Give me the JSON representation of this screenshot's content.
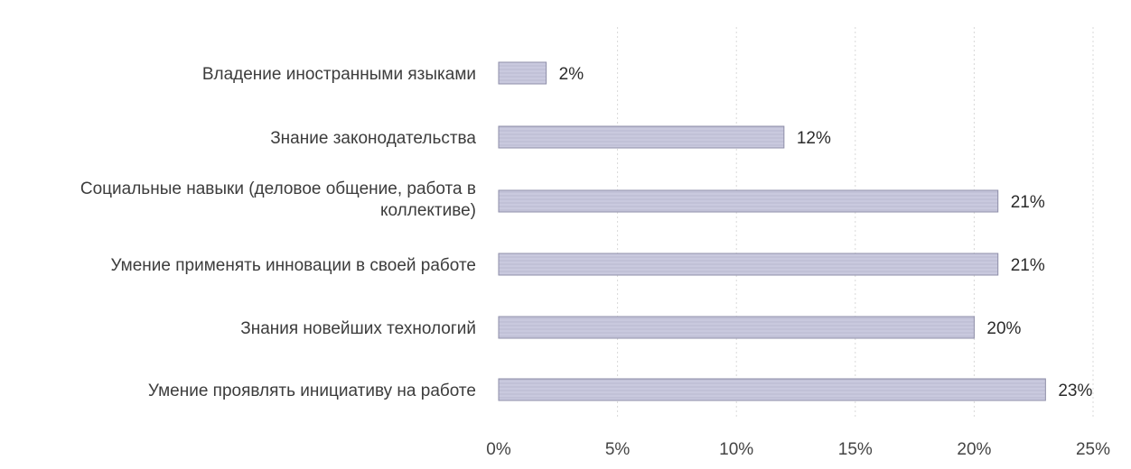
{
  "chart_data": {
    "type": "bar",
    "orientation": "horizontal",
    "categories": [
      "Владение иностранными языками",
      "Знание законодательства",
      "Социальные навыки (деловое общение, работа в коллективе)",
      "Умение применять инновации в своей работе",
      "Знания новейших технологий",
      "Умение проявлять инициативу на работе"
    ],
    "category_lines": [
      [
        "Владение иностранными языками"
      ],
      [
        "Знание законодательства"
      ],
      [
        "Социальные навыки (деловое общение, работа в",
        "коллективе)"
      ],
      [
        "Умение применять инновации в своей работе"
      ],
      [
        "Знания новейших технологий"
      ],
      [
        "Умение проявлять инициативу на работе"
      ]
    ],
    "values": [
      2,
      12,
      21,
      21,
      20,
      23
    ],
    "value_labels": [
      "2%",
      "12%",
      "21%",
      "21%",
      "20%",
      "23%"
    ],
    "x_ticks": [
      0,
      5,
      10,
      15,
      20,
      25
    ],
    "x_tick_labels": [
      "0%",
      "5%",
      "10%",
      "15%",
      "20%",
      "25%"
    ],
    "xlim": [
      0,
      25
    ],
    "title": "",
    "xlabel": "",
    "ylabel": "",
    "grid": true,
    "legend": "none",
    "colors": {
      "bar_fill": "#c7c7dd",
      "bar_edge": "#8e8ea8",
      "grid": "#d9d9d9",
      "text": "#3c3c3c"
    }
  }
}
